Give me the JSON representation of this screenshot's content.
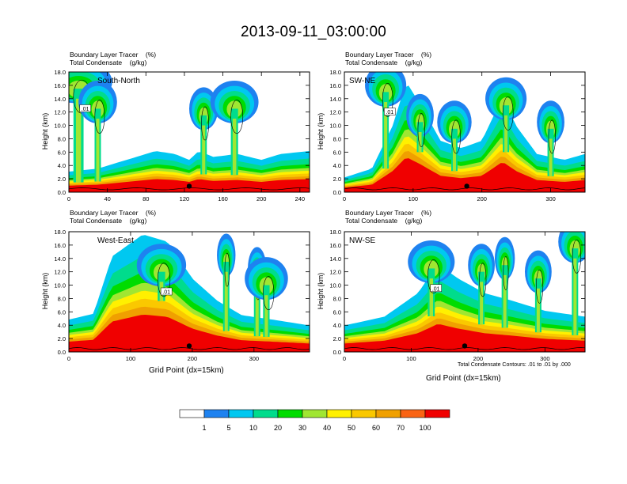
{
  "title": "2013-09-11_03:00:00",
  "colorbar": {
    "colors": [
      "#ffffff",
      "#1e82f0",
      "#00c8f0",
      "#00dc8c",
      "#00dc00",
      "#a0e632",
      "#fff000",
      "#fac800",
      "#f0a000",
      "#fa6414",
      "#f00000"
    ],
    "labels": [
      "1",
      "5",
      "10",
      "20",
      "30",
      "40",
      "50",
      "60",
      "70",
      "100"
    ]
  },
  "xlabel_bottom": "Grid Point (dx=15km)",
  "contour_note": "Total Condensate Contours: .01 to .01 by .000",
  "chart_data": [
    {
      "type": "heatmap",
      "panel_name": "South-North",
      "subtitle1": "Boundary Layer Tracer    (%)",
      "subtitle2": "Total Condensate    (g/kg)",
      "ylabel": "Height (km)",
      "xlabel": "",
      "xlim": [
        0,
        250
      ],
      "ylim": [
        0,
        18
      ],
      "xticks": [
        0,
        40,
        80,
        120,
        160,
        200,
        240
      ],
      "yticks": [
        "0.0",
        "2.0",
        "4.0",
        "6.0",
        "8.0",
        "10.0",
        "12.0",
        "14.0",
        "16.0",
        "18.0"
      ],
      "boundary_layer_top": [
        [
          0,
          1.4
        ],
        [
          30,
          1.6
        ],
        [
          60,
          2.2
        ],
        [
          90,
          2.8
        ],
        [
          110,
          2.6
        ],
        [
          125,
          2.2
        ],
        [
          135,
          2.8
        ],
        [
          150,
          2.4
        ],
        [
          175,
          2.6
        ],
        [
          200,
          2.2
        ],
        [
          220,
          2.6
        ],
        [
          250,
          2.8
        ]
      ],
      "plumes": [
        [
          10,
          16.5,
          35
        ],
        [
          30,
          13.5,
          20
        ],
        [
          140,
          12.5,
          15
        ],
        [
          172,
          13.5,
          25
        ]
      ],
      "marker_x": 125,
      "contour_label": ".01"
    },
    {
      "type": "heatmap",
      "panel_name": "SW-NE",
      "subtitle1": "Boundary Layer Tracer    (%)",
      "subtitle2": "Total Condensate    (g/kg)",
      "ylabel": "Height (km)",
      "xlabel": "",
      "xlim": [
        0,
        350
      ],
      "ylim": [
        0,
        18
      ],
      "xticks": [
        0,
        100,
        200,
        300
      ],
      "yticks": [
        "0.0",
        "2.0",
        "4.0",
        "6.0",
        "8.0",
        "10.0",
        "12.0",
        "14.0",
        "16.0",
        "18.0"
      ],
      "boundary_layer_top": [
        [
          0,
          1.0
        ],
        [
          40,
          1.6
        ],
        [
          70,
          4.5
        ],
        [
          90,
          7.5
        ],
        [
          110,
          6.0
        ],
        [
          140,
          3.5
        ],
        [
          170,
          3.0
        ],
        [
          200,
          3.5
        ],
        [
          230,
          6.5
        ],
        [
          250,
          4.5
        ],
        [
          280,
          2.6
        ],
        [
          320,
          2.2
        ],
        [
          350,
          2.6
        ]
      ],
      "plumes": [
        [
          60,
          16.0,
          30
        ],
        [
          110,
          11.5,
          20
        ],
        [
          160,
          10.5,
          25
        ],
        [
          235,
          14.0,
          30
        ],
        [
          300,
          10.5,
          20
        ]
      ],
      "marker_x": 178,
      "contour_label": ".01"
    },
    {
      "type": "heatmap",
      "panel_name": "West-East",
      "subtitle1": "Boundary Layer Tracer    (%)",
      "subtitle2": "Total Condensate    (g/kg)",
      "ylabel": "Height (km)",
      "xlabel": "Grid Point (dx=15km)",
      "xlim": [
        0,
        390
      ],
      "ylim": [
        0,
        18
      ],
      "xticks": [
        0,
        100,
        200,
        300
      ],
      "yticks": [
        "0.0",
        "2.0",
        "4.0",
        "6.0",
        "8.0",
        "10.0",
        "12.0",
        "14.0",
        "16.0",
        "18.0"
      ],
      "boundary_layer_top": [
        [
          0,
          2.2
        ],
        [
          40,
          2.6
        ],
        [
          70,
          6.5
        ],
        [
          120,
          8.0
        ],
        [
          160,
          7.5
        ],
        [
          200,
          5.0
        ],
        [
          240,
          3.5
        ],
        [
          280,
          2.5
        ],
        [
          330,
          2.2
        ],
        [
          390,
          1.8
        ]
      ],
      "plumes": [
        [
          150,
          13.0,
          40
        ],
        [
          255,
          14.5,
          15
        ],
        [
          305,
          12.5,
          15
        ],
        [
          320,
          11.0,
          35
        ]
      ],
      "marker_x": 195,
      "contour_label": ".01"
    },
    {
      "type": "heatmap",
      "panel_name": "NW-SE",
      "subtitle1": "Boundary Layer Tracer    (%)",
      "subtitle2": "Total Condensate    (g/kg)",
      "ylabel": "Height (km)",
      "xlabel": "Grid Point (dx=15km)",
      "xlim": [
        0,
        360
      ],
      "ylim": [
        0,
        18
      ],
      "xticks": [
        0,
        100,
        200,
        300
      ],
      "yticks": [
        "0.0",
        "2.0",
        "4.0",
        "6.0",
        "8.0",
        "10.0",
        "12.0",
        "14.0",
        "16.0",
        "18.0"
      ],
      "boundary_layer_top": [
        [
          0,
          1.8
        ],
        [
          60,
          2.4
        ],
        [
          110,
          4.0
        ],
        [
          140,
          6.0
        ],
        [
          170,
          5.0
        ],
        [
          210,
          4.0
        ],
        [
          250,
          3.5
        ],
        [
          300,
          2.8
        ],
        [
          360,
          2.4
        ]
      ],
      "plumes": [
        [
          130,
          13.5,
          35
        ],
        [
          205,
          13.0,
          20
        ],
        [
          240,
          14.0,
          15
        ],
        [
          290,
          12.0,
          20
        ],
        [
          345,
          16.5,
          25
        ]
      ],
      "marker_x": 180,
      "contour_label": ".01"
    }
  ]
}
